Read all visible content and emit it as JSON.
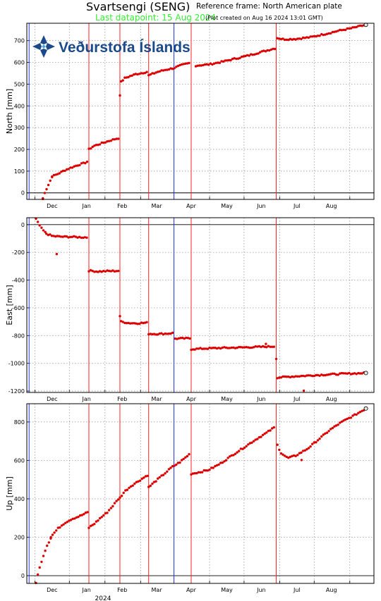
{
  "header": {
    "title": "Svartsengi (SENG)",
    "reference_frame": "Reference frame: North American plate",
    "last_datapoint": "Last datapoint: 15 Aug 2024",
    "plot_created": "(Plot created on Aug 16 2024 13:01 GMT)"
  },
  "logo": {
    "text": "Veðurstofa Íslands",
    "color": "#1a4a8a"
  },
  "year_label": "2024",
  "colors": {
    "data": "#dd0000",
    "event_line": "#ff2222",
    "blue_line": "#2233ee",
    "grid": "#888888",
    "last_point": "#e8e8e8"
  },
  "time_axis": {
    "start": "2023-10-25",
    "end": "2024-08-22",
    "month_ticks": [
      "2023-11-01",
      "2023-12-01",
      "2024-01-01",
      "2024-02-01",
      "2024-03-01",
      "2024-04-01",
      "2024-05-01",
      "2024-06-01",
      "2024-07-01",
      "2024-08-01"
    ],
    "month_labels": [
      {
        "label": "Dec",
        "date": "2023-11-16"
      },
      {
        "label": "Jan",
        "date": "2023-12-16"
      },
      {
        "label": "Feb",
        "date": "2024-01-16"
      },
      {
        "label": "Mar",
        "date": "2024-02-15"
      },
      {
        "label": "Apr",
        "date": "2024-03-16"
      },
      {
        "label": "May",
        "date": "2024-04-16"
      },
      {
        "label": "Jun",
        "date": "2024-05-16"
      },
      {
        "label": "Jul",
        "date": "2024-06-16"
      },
      {
        "label": "Aug",
        "date": "2024-07-16"
      }
    ],
    "red_lines": [
      "2023-12-18",
      "2024-01-14",
      "2024-02-08",
      "2024-03-16",
      "2024-05-29"
    ],
    "blue_lines": [
      "2023-10-27",
      "2024-03-01"
    ]
  },
  "chart_data": [
    {
      "type": "scatter",
      "ylabel": "North [mm]",
      "ylim": [
        -30,
        780
      ],
      "yticks": [
        0,
        100,
        200,
        300,
        400,
        500,
        600,
        700
      ],
      "segments": [
        {
          "from": "2023-11-08",
          "to": "2023-11-16",
          "points": [
            [
              "2023-11-08",
              -25
            ],
            [
              "2023-11-10",
              5
            ],
            [
              "2023-11-13",
              40
            ],
            [
              "2023-11-16",
              75
            ]
          ]
        },
        {
          "from": "2023-11-16",
          "to": "2023-12-17",
          "points": [
            [
              "2023-11-16",
              75
            ],
            [
              "2023-11-22",
              90
            ],
            [
              "2023-11-27",
              104
            ],
            [
              "2023-12-02",
              115
            ],
            [
              "2023-12-08",
              127
            ],
            [
              "2023-12-14",
              137
            ],
            [
              "2023-12-17",
              145
            ]
          ]
        },
        {
          "from": "2023-12-18",
          "to": "2024-01-13",
          "points": [
            [
              "2023-12-18",
              200
            ],
            [
              "2023-12-22",
              215
            ],
            [
              "2023-12-28",
              226
            ],
            [
              "2024-01-04",
              238
            ],
            [
              "2024-01-10",
              248
            ],
            [
              "2024-01-13",
              252
            ]
          ]
        },
        {
          "from": "2024-01-14",
          "to": "2024-02-07",
          "points": [
            [
              "2024-01-15",
              510
            ],
            [
              "2024-01-18",
              527
            ],
            [
              "2024-01-23",
              537
            ],
            [
              "2024-01-28",
              546
            ],
            [
              "2024-02-03",
              552
            ],
            [
              "2024-02-07",
              557
            ]
          ]
        },
        {
          "from": "2024-02-08",
          "to": "2024-03-15",
          "points": [
            [
              "2024-02-08",
              540
            ],
            [
              "2024-02-15",
              555
            ],
            [
              "2024-02-22",
              565
            ],
            [
              "2024-03-01",
              574
            ],
            [
              "2024-03-08",
              588
            ],
            [
              "2024-03-15",
              598
            ]
          ]
        },
        {
          "from": "2024-03-20",
          "to": "2024-05-28",
          "points": [
            [
              "2024-03-20",
              585
            ],
            [
              "2024-04-01",
              591
            ],
            [
              "2024-04-12",
              603
            ],
            [
              "2024-04-24",
              618
            ],
            [
              "2024-05-05",
              632
            ],
            [
              "2024-05-16",
              648
            ],
            [
              "2024-05-28",
              665
            ]
          ]
        },
        {
          "from": "2024-05-30",
          "to": "2024-08-15",
          "points": [
            [
              "2024-05-30",
              712
            ],
            [
              "2024-06-05",
              706
            ],
            [
              "2024-06-15",
              708
            ],
            [
              "2024-06-28",
              716
            ],
            [
              "2024-07-10",
              730
            ],
            [
              "2024-07-22",
              745
            ],
            [
              "2024-08-05",
              760
            ],
            [
              "2024-08-15",
              773
            ]
          ]
        }
      ],
      "outliers": [
        [
          "2024-01-14",
          448
        ],
        [
          "2023-11-08",
          -28
        ]
      ]
    },
    {
      "type": "scatter",
      "ylabel": "East [mm]",
      "ylim": [
        -1210,
        50
      ],
      "yticks": [
        0,
        -200,
        -400,
        -600,
        -800,
        -1000,
        -1200
      ],
      "segments": [
        {
          "from": "2023-11-02",
          "to": "2023-11-11",
          "points": [
            [
              "2023-11-02",
              40
            ],
            [
              "2023-11-04",
              10
            ],
            [
              "2023-11-07",
              -30
            ],
            [
              "2023-11-11",
              -65
            ]
          ]
        },
        {
          "from": "2023-11-11",
          "to": "2023-12-17",
          "points": [
            [
              "2023-11-11",
              -65
            ],
            [
              "2023-11-16",
              -82
            ],
            [
              "2023-11-24",
              -87
            ],
            [
              "2023-12-03",
              -88
            ],
            [
              "2023-12-11",
              -91
            ],
            [
              "2023-12-17",
              -92
            ]
          ]
        },
        {
          "from": "2023-12-18",
          "to": "2024-01-13",
          "points": [
            [
              "2023-12-18",
              -332
            ],
            [
              "2023-12-26",
              -338
            ],
            [
              "2024-01-04",
              -335
            ],
            [
              "2024-01-13",
              -333
            ]
          ]
        },
        {
          "from": "2024-01-15",
          "to": "2024-02-07",
          "points": [
            [
              "2024-01-15",
              -700
            ],
            [
              "2024-01-22",
              -710
            ],
            [
              "2024-01-30",
              -711
            ],
            [
              "2024-02-07",
              -707
            ]
          ]
        },
        {
          "from": "2024-02-08",
          "to": "2024-03-01",
          "points": [
            [
              "2024-02-08",
              -787
            ],
            [
              "2024-02-17",
              -788
            ],
            [
              "2024-02-25",
              -785
            ],
            [
              "2024-03-01",
              -781
            ]
          ]
        },
        {
          "from": "2024-03-02",
          "to": "2024-03-15",
          "points": [
            [
              "2024-03-02",
              -822
            ],
            [
              "2024-03-08",
              -821
            ],
            [
              "2024-03-15",
              -820
            ]
          ]
        },
        {
          "from": "2024-03-16",
          "to": "2024-05-28",
          "points": [
            [
              "2024-03-16",
              -898
            ],
            [
              "2024-03-28",
              -893
            ],
            [
              "2024-04-12",
              -889
            ],
            [
              "2024-04-28",
              -886
            ],
            [
              "2024-05-12",
              -882
            ],
            [
              "2024-05-28",
              -878
            ]
          ]
        },
        {
          "from": "2024-05-30",
          "to": "2024-08-15",
          "points": [
            [
              "2024-05-30",
              -1103
            ],
            [
              "2024-06-10",
              -1096
            ],
            [
              "2024-06-25",
              -1089
            ],
            [
              "2024-07-10",
              -1082
            ],
            [
              "2024-07-25",
              -1076
            ],
            [
              "2024-08-15",
              -1070
            ]
          ]
        }
      ],
      "outliers": [
        [
          "2023-11-20",
          -212
        ],
        [
          "2024-01-14",
          -660
        ],
        [
          "2024-05-29",
          -968
        ],
        [
          "2024-06-22",
          -1198
        ],
        [
          "2024-05-20",
          -860
        ]
      ]
    },
    {
      "type": "scatter",
      "ylabel": "Up [mm]",
      "ylim": [
        -40,
        895
      ],
      "yticks": [
        0,
        200,
        400,
        600,
        800
      ],
      "segments": [
        {
          "from": "2023-11-02",
          "to": "2023-12-17",
          "points": [
            [
              "2023-11-02",
              -35
            ],
            [
              "2023-11-04",
              15
            ],
            [
              "2023-11-07",
              80
            ],
            [
              "2023-11-11",
              150
            ],
            [
              "2023-11-16",
              210
            ],
            [
              "2023-11-21",
              245
            ],
            [
              "2023-11-27",
              275
            ],
            [
              "2023-12-03",
              295
            ],
            [
              "2023-12-10",
              310
            ],
            [
              "2023-12-17",
              330
            ]
          ]
        },
        {
          "from": "2023-12-18",
          "to": "2024-01-13",
          "points": [
            [
              "2023-12-18",
              250
            ],
            [
              "2023-12-23",
              272
            ],
            [
              "2023-12-28",
              300
            ],
            [
              "2024-01-03",
              330
            ],
            [
              "2024-01-08",
              365
            ],
            [
              "2024-01-13",
              402
            ]
          ]
        },
        {
          "from": "2024-01-14",
          "to": "2024-02-07",
          "points": [
            [
              "2024-01-14",
              405
            ],
            [
              "2024-01-18",
              438
            ],
            [
              "2024-01-24",
              468
            ],
            [
              "2024-01-30",
              492
            ],
            [
              "2024-02-07",
              523
            ]
          ]
        },
        {
          "from": "2024-02-08",
          "to": "2024-03-15",
          "points": [
            [
              "2024-02-08",
              460
            ],
            [
              "2024-02-14",
              492
            ],
            [
              "2024-02-21",
              527
            ],
            [
              "2024-02-28",
              564
            ],
            [
              "2024-03-06",
              590
            ],
            [
              "2024-03-15",
              635
            ]
          ]
        },
        {
          "from": "2024-03-16",
          "to": "2024-05-28",
          "points": [
            [
              "2024-03-16",
              530
            ],
            [
              "2024-03-24",
              540
            ],
            [
              "2024-03-31",
              550
            ],
            [
              "2024-04-10",
              582
            ],
            [
              "2024-04-21",
              628
            ],
            [
              "2024-05-02",
              672
            ],
            [
              "2024-05-12",
              712
            ],
            [
              "2024-05-21",
              745
            ],
            [
              "2024-05-28",
              775
            ]
          ]
        },
        {
          "from": "2024-05-30",
          "to": "2024-08-15",
          "points": [
            [
              "2024-05-30",
              680
            ],
            [
              "2024-06-02",
              640
            ],
            [
              "2024-06-08",
              612
            ],
            [
              "2024-06-15",
              625
            ],
            [
              "2024-06-25",
              660
            ],
            [
              "2024-07-05",
              710
            ],
            [
              "2024-07-15",
              760
            ],
            [
              "2024-07-25",
              800
            ],
            [
              "2024-08-05",
              835
            ],
            [
              "2024-08-15",
              870
            ]
          ]
        }
      ],
      "outliers": [
        [
          "2024-06-20",
          602
        ],
        [
          "2023-11-15",
          200
        ]
      ]
    }
  ]
}
